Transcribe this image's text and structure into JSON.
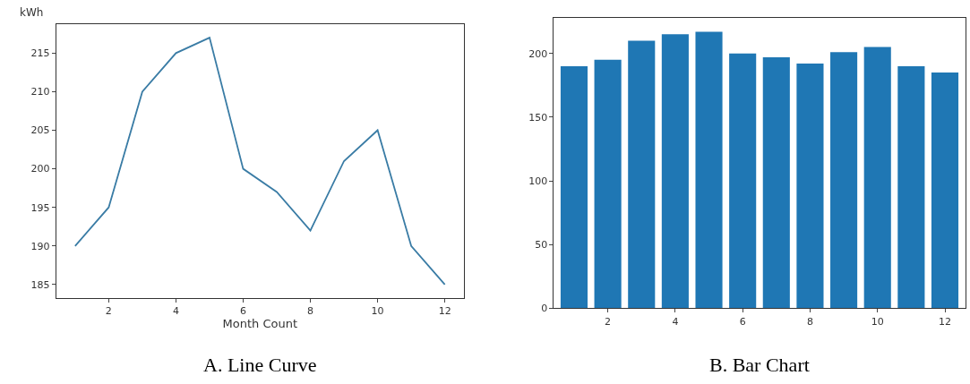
{
  "chart_data": [
    {
      "type": "line",
      "ylabel": "kWh",
      "xlabel": "Month Count",
      "annotations": [
        "A. Line Curve"
      ],
      "x": [
        1,
        2,
        3,
        4,
        5,
        6,
        7,
        8,
        9,
        10,
        11,
        12
      ],
      "series": [
        {
          "color": "#3a7ca5",
          "values": [
            190,
            195,
            210,
            215,
            217,
            200,
            197,
            192,
            201,
            205,
            190,
            185
          ]
        }
      ],
      "xlim": [
        0.44,
        12.56
      ],
      "xticks": [
        2,
        4,
        6,
        8,
        10,
        12
      ],
      "ylim": [
        183.3,
        218.7
      ],
      "yticks": [
        185,
        190,
        195,
        200,
        205,
        210,
        215
      ],
      "marker": "none",
      "line_style": "solid"
    },
    {
      "type": "bar",
      "annotations": [
        "B. Bar Chart"
      ],
      "x": [
        1,
        2,
        3,
        4,
        5,
        6,
        7,
        8,
        9,
        10,
        11,
        12
      ],
      "series": [
        {
          "color": "#1f77b4",
          "values": [
            190,
            195,
            210,
            215,
            217,
            200,
            197,
            192,
            201,
            205,
            190,
            185
          ]
        }
      ],
      "xlim": [
        0.4,
        12.6
      ],
      "xticks": [
        2,
        4,
        6,
        8,
        10,
        12
      ],
      "ylim": [
        0,
        228
      ],
      "yticks": [
        0,
        50,
        100,
        150,
        200
      ]
    }
  ]
}
